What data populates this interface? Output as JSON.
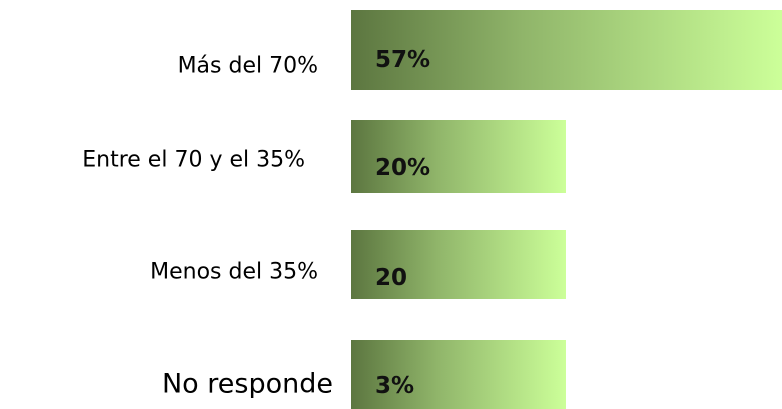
{
  "rows": [
    {
      "label": "Más del 70%",
      "value": "57%"
    },
    {
      "label": "Entre el 70 y el 35%",
      "value": "20%"
    },
    {
      "label": "Menos del 35%",
      "value": "20"
    },
    {
      "label": "No responde",
      "value": "3%"
    }
  ]
}
